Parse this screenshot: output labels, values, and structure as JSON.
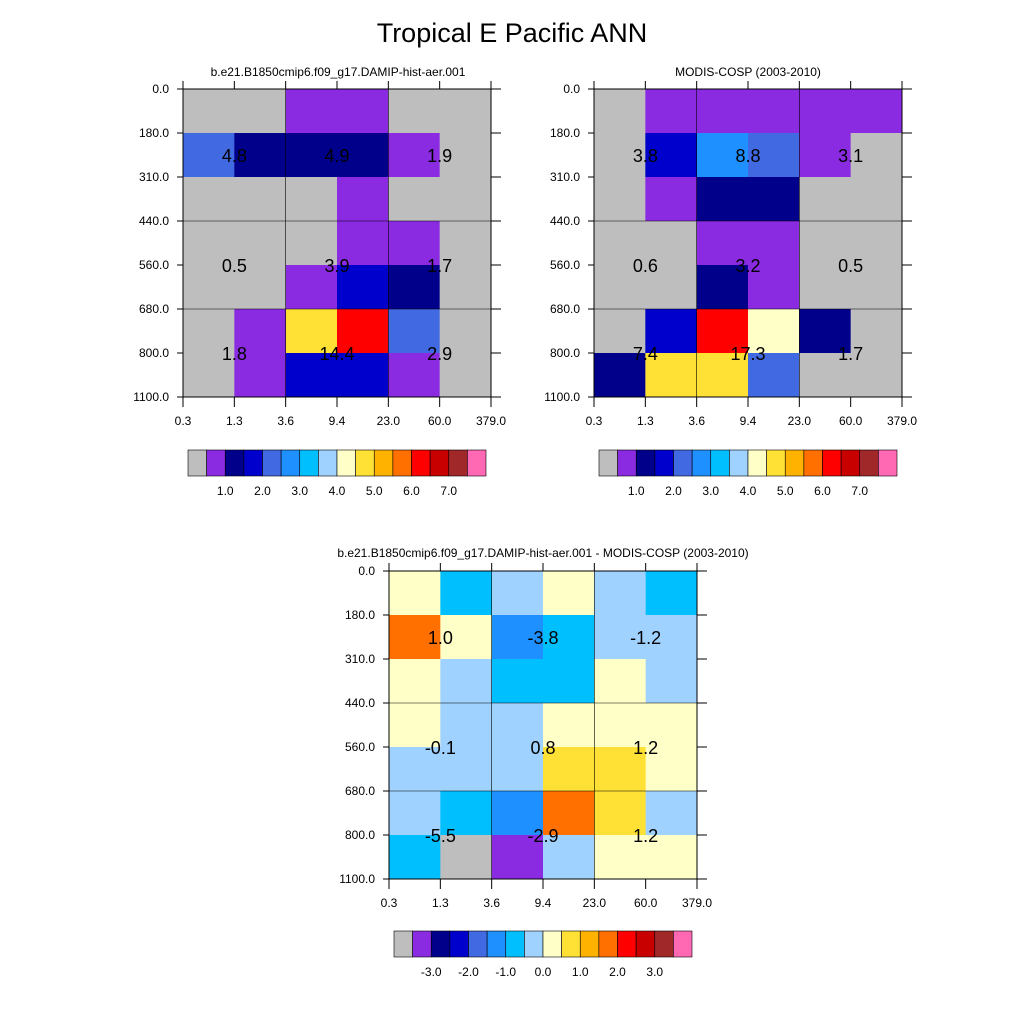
{
  "title": "Tropical E Pacific ANN",
  "palette": [
    "#bebebe",
    "#8a2be2",
    "#00008b",
    "#0000cd",
    "#4169e1",
    "#1e90ff",
    "#00bfff",
    "#a0d2ff",
    "#ffffc8",
    "#ffe135",
    "#ffb300",
    "#ff7000",
    "#ff0000",
    "#c80000",
    "#a02828",
    "#ff69b4"
  ],
  "chart_data": [
    {
      "type": "heatmap",
      "title": "b.e21.B1850cmip6.f09_g17.DAMIP-hist-aer.001",
      "x_ticks": [
        "0.3",
        "1.3",
        "3.6",
        "9.4",
        "23.0",
        "60.0",
        "379.0"
      ],
      "y_ticks": [
        "0.0",
        "180.0",
        "310.0",
        "440.0",
        "560.0",
        "680.0",
        "800.0",
        "1100.0"
      ],
      "color_indices": [
        [
          0,
          0,
          1,
          1,
          0,
          0
        ],
        [
          4,
          2,
          2,
          2,
          1,
          0
        ],
        [
          0,
          0,
          0,
          1,
          0,
          0
        ],
        [
          0,
          0,
          0,
          1,
          1,
          0
        ],
        [
          0,
          0,
          1,
          3,
          2,
          0
        ],
        [
          0,
          1,
          9,
          12,
          4,
          0
        ],
        [
          0,
          1,
          3,
          3,
          1,
          0
        ]
      ],
      "labels": [
        {
          "text": "4.8",
          "col": 1,
          "row": 1.5
        },
        {
          "text": "4.9",
          "col": 3,
          "row": 1.5
        },
        {
          "text": "1.9",
          "col": 5,
          "row": 1.5
        },
        {
          "text": "0.5",
          "col": 1,
          "row": 4
        },
        {
          "text": "3.9",
          "col": 3,
          "row": 4
        },
        {
          "text": "1.7",
          "col": 5,
          "row": 4
        },
        {
          "text": "1.8",
          "col": 1,
          "row": 6
        },
        {
          "text": "14.4",
          "col": 3,
          "row": 6
        },
        {
          "text": "2.9",
          "col": 5,
          "row": 6
        }
      ],
      "colorbar_labels": [
        "1.0",
        "2.0",
        "3.0",
        "4.0",
        "5.0",
        "6.0",
        "7.0"
      ]
    },
    {
      "type": "heatmap",
      "title": "MODIS-COSP (2003-2010)",
      "x_ticks": [
        "0.3",
        "1.3",
        "3.6",
        "9.4",
        "23.0",
        "60.0",
        "379.0"
      ],
      "y_ticks": [
        "0.0",
        "180.0",
        "310.0",
        "440.0",
        "560.0",
        "680.0",
        "800.0",
        "1100.0"
      ],
      "color_indices": [
        [
          0,
          1,
          1,
          1,
          1,
          1
        ],
        [
          0,
          3,
          5,
          4,
          1,
          0
        ],
        [
          0,
          1,
          2,
          2,
          0,
          0
        ],
        [
          0,
          0,
          1,
          1,
          0,
          0
        ],
        [
          0,
          0,
          2,
          1,
          0,
          0
        ],
        [
          0,
          3,
          12,
          8,
          2,
          0
        ],
        [
          2,
          9,
          9,
          4,
          0,
          0
        ]
      ],
      "labels": [
        {
          "text": "3.8",
          "col": 1,
          "row": 1.5
        },
        {
          "text": "8.8",
          "col": 3,
          "row": 1.5
        },
        {
          "text": "3.1",
          "col": 5,
          "row": 1.5
        },
        {
          "text": "0.6",
          "col": 1,
          "row": 4
        },
        {
          "text": "3.2",
          "col": 3,
          "row": 4
        },
        {
          "text": "0.5",
          "col": 5,
          "row": 4
        },
        {
          "text": "7.4",
          "col": 1,
          "row": 6
        },
        {
          "text": "17.3",
          "col": 3,
          "row": 6
        },
        {
          "text": "1.7",
          "col": 5,
          "row": 6
        }
      ],
      "colorbar_labels": [
        "1.0",
        "2.0",
        "3.0",
        "4.0",
        "5.0",
        "6.0",
        "7.0"
      ]
    },
    {
      "type": "heatmap",
      "title": "b.e21.B1850cmip6.f09_g17.DAMIP-hist-aer.001 - MODIS-COSP (2003-2010)",
      "x_ticks": [
        "0.3",
        "1.3",
        "3.6",
        "9.4",
        "23.0",
        "60.0",
        "379.0"
      ],
      "y_ticks": [
        "0.0",
        "180.0",
        "310.0",
        "440.0",
        "560.0",
        "680.0",
        "800.0",
        "1100.0"
      ],
      "color_indices": [
        [
          8,
          6,
          7,
          8,
          7,
          6
        ],
        [
          11,
          8,
          5,
          6,
          7,
          7
        ],
        [
          8,
          7,
          6,
          6,
          8,
          7
        ],
        [
          8,
          7,
          7,
          8,
          8,
          8
        ],
        [
          7,
          7,
          7,
          9,
          9,
          8
        ],
        [
          7,
          6,
          5,
          11,
          9,
          7
        ],
        [
          6,
          0,
          1,
          7,
          8,
          8
        ]
      ],
      "labels": [
        {
          "text": "1.0",
          "col": 1,
          "row": 1.5
        },
        {
          "text": "-3.8",
          "col": 3,
          "row": 1.5
        },
        {
          "text": "-1.2",
          "col": 5,
          "row": 1.5
        },
        {
          "text": "-0.1",
          "col": 1,
          "row": 4
        },
        {
          "text": "0.8",
          "col": 3,
          "row": 4
        },
        {
          "text": "1.2",
          "col": 5,
          "row": 4
        },
        {
          "text": "-5.5",
          "col": 1,
          "row": 6
        },
        {
          "text": "-2.9",
          "col": 3,
          "row": 6
        },
        {
          "text": "1.2",
          "col": 5,
          "row": 6
        }
      ],
      "colorbar_labels": [
        "-3.0",
        "-2.0",
        "-1.0",
        "0.0",
        "1.0",
        "2.0",
        "3.0"
      ]
    }
  ]
}
